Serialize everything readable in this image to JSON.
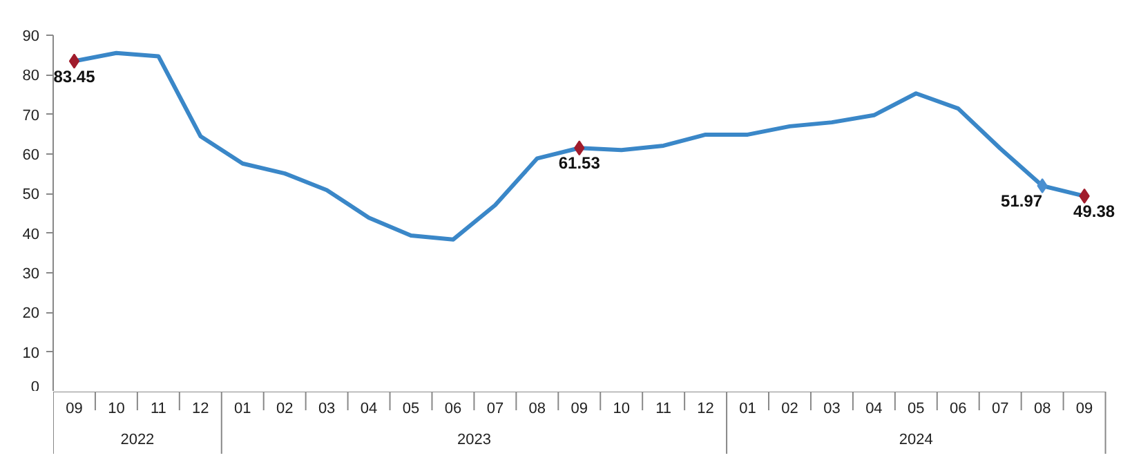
{
  "chart_data": {
    "type": "line",
    "categories": [
      "09",
      "10",
      "11",
      "12",
      "01",
      "02",
      "03",
      "04",
      "05",
      "06",
      "07",
      "08",
      "09",
      "10",
      "11",
      "12",
      "01",
      "02",
      "03",
      "04",
      "05",
      "06",
      "07",
      "08",
      "09"
    ],
    "annotations": [
      "2022",
      "2023",
      "2024"
    ],
    "series": [
      {
        "color": "#3a87c8",
        "colors": [
          "#a01c2c",
          null,
          null,
          null,
          null,
          null,
          null,
          null,
          null,
          null,
          null,
          null,
          "#a01c2c",
          null,
          null,
          null,
          null,
          null,
          null,
          null,
          null,
          null,
          null,
          "#4a8fd0",
          "#a01c2c"
        ],
        "values": [
          83.45,
          85.5,
          84.7,
          64.5,
          57.6,
          55.1,
          50.9,
          43.9,
          39.4,
          38.4,
          47.1,
          58.9,
          61.53,
          61.0,
          62.1,
          64.9,
          64.9,
          67.0,
          68.0,
          69.8,
          75.3,
          71.5,
          61.4,
          51.97,
          49.38
        ],
        "value_labels": [
          "83.45",
          null,
          null,
          null,
          null,
          null,
          null,
          null,
          null,
          null,
          null,
          null,
          "61.53",
          null,
          null,
          null,
          null,
          null,
          null,
          null,
          null,
          null,
          null,
          "51.97",
          "49.38"
        ]
      }
    ],
    "ylim": [
      0,
      90
    ],
    "yticks": [
      0,
      10,
      20,
      30,
      40,
      50,
      60,
      70,
      80,
      90
    ],
    "grid": false,
    "line_style": "solid"
  }
}
